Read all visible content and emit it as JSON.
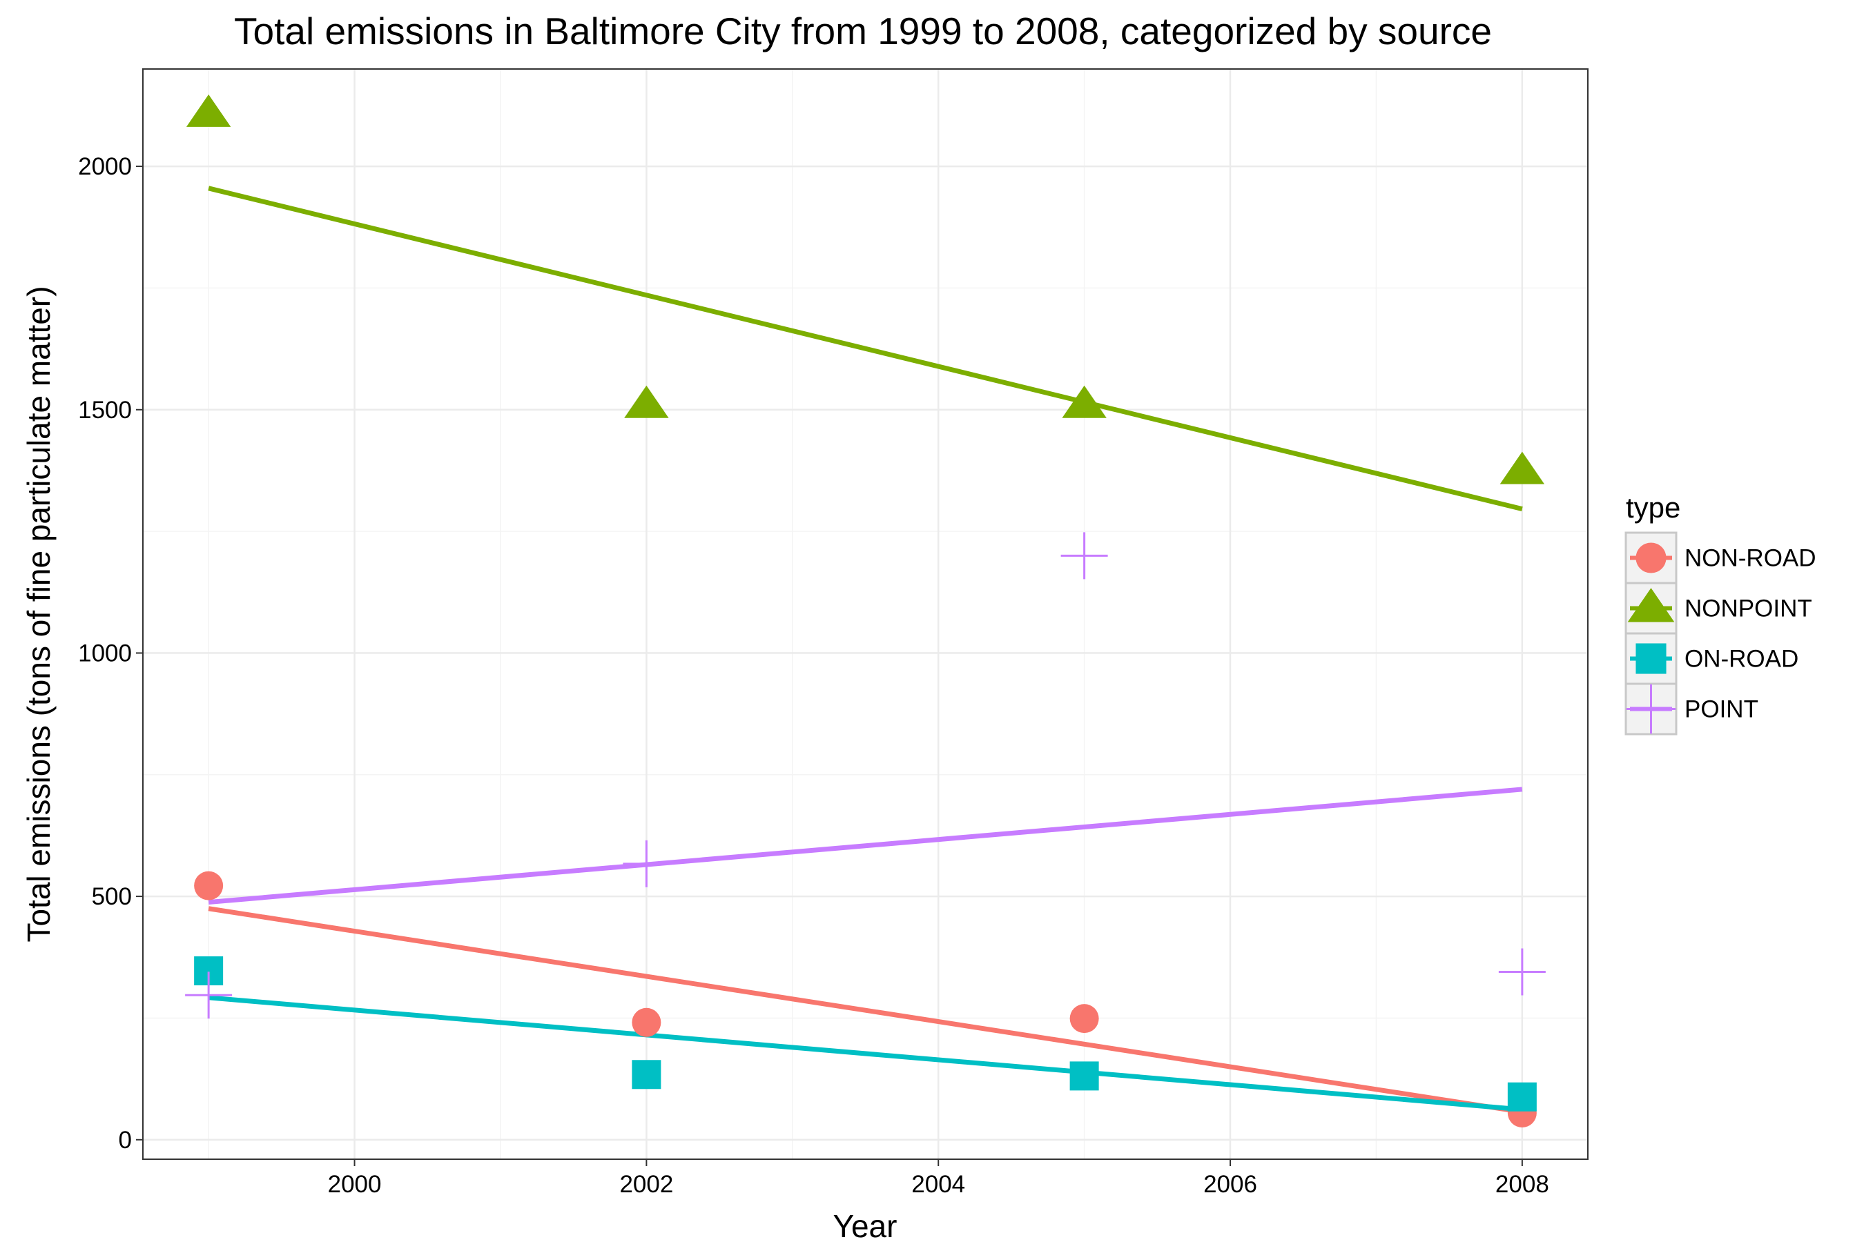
{
  "chart_data": {
    "type": "scatter",
    "title": "Total emissions in Baltimore City from 1999 to 2008, categorized by source",
    "xlabel": "Year",
    "ylabel": "Total emissions (tons of fine particulate matter)",
    "xlim": [
      1998.55,
      2008.45
    ],
    "ylim": [
      -40,
      2200
    ],
    "x_ticks": [
      2000,
      2002,
      2004,
      2006,
      2008
    ],
    "y_ticks": [
      0,
      500,
      1000,
      1500,
      2000
    ],
    "grid": true,
    "legend": {
      "title": "type",
      "placement": "right"
    },
    "series": [
      {
        "name": "NON-ROAD",
        "color": "#F8766D",
        "shape": "circle",
        "x": [
          1999,
          2002,
          2005,
          2008
        ],
        "y": [
          522,
          241,
          249,
          55
        ],
        "trend": {
          "x": [
            1999,
            2008
          ],
          "y": [
            475,
            57
          ]
        }
      },
      {
        "name": "NONPOINT",
        "color": "#7CAE00",
        "shape": "triangle",
        "x": [
          1999,
          2002,
          2005,
          2008
        ],
        "y": [
          2108,
          1510,
          1510,
          1374
        ],
        "trend": {
          "x": [
            1999,
            2008
          ],
          "y": [
            1955,
            1296
          ]
        }
      },
      {
        "name": "ON-ROAD",
        "color": "#00BFC4",
        "shape": "square",
        "x": [
          1999,
          2002,
          2005,
          2008
        ],
        "y": [
          347,
          134,
          131,
          88
        ],
        "trend": {
          "x": [
            1999,
            2008
          ],
          "y": [
            292,
            62
          ]
        }
      },
      {
        "name": "POINT",
        "color": "#C77CFF",
        "shape": "cross",
        "x": [
          1999,
          2002,
          2005,
          2008
        ],
        "y": [
          297,
          567,
          1200,
          345
        ],
        "trend": {
          "x": [
            1999,
            2008
          ],
          "y": [
            488,
            720
          ]
        }
      }
    ]
  }
}
